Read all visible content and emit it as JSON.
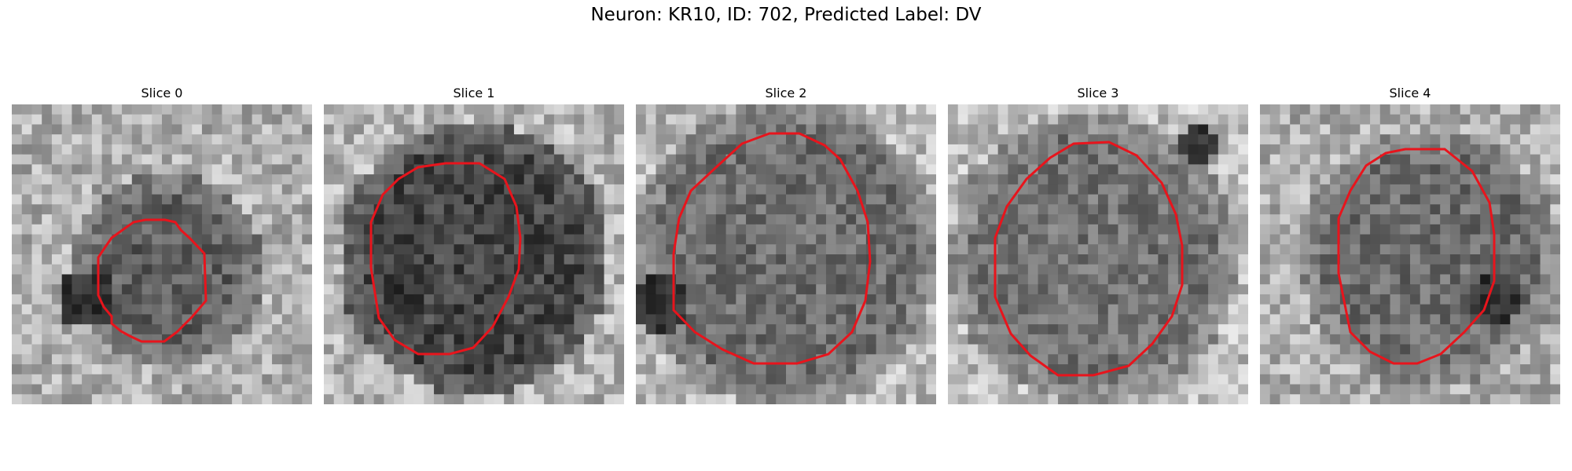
{
  "title": "Neuron: KR10, ID: 702, Predicted Label: DV",
  "outline_color": "#e8141c",
  "slices": [
    {
      "label": "Slice 0"
    },
    {
      "label": "Slice 1"
    },
    {
      "label": "Slice 2"
    },
    {
      "label": "Slice 3"
    },
    {
      "label": "Slice 4"
    }
  ]
}
